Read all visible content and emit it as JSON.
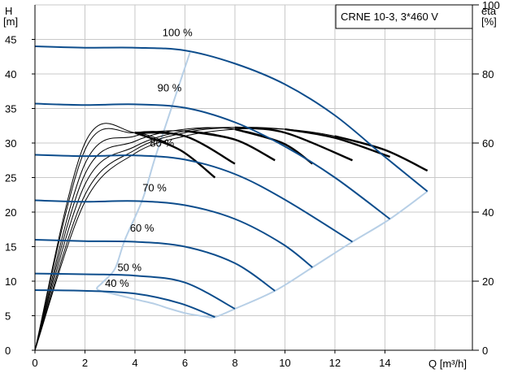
{
  "chart_data": {
    "type": "line",
    "title": "CRNE 10-3, 3*460 V",
    "xlabel": "Q [m³/h]",
    "ylabel_left_top": "H",
    "ylabel_left_bottom": "[m]",
    "ylabel_right_top": "eta",
    "ylabel_right_bottom": "[%]",
    "xlim": [
      0,
      17.5
    ],
    "ylim_head": [
      0,
      50
    ],
    "ylim_eta": [
      0,
      100
    ],
    "x_ticks": [
      0,
      2,
      4,
      6,
      8,
      10,
      12,
      14
    ],
    "x_tick_labels": [
      "0",
      "2",
      "4",
      "6",
      "8",
      "10",
      "12",
      "14"
    ],
    "head_ticks": [
      0,
      5,
      10,
      15,
      20,
      25,
      30,
      35,
      40,
      45
    ],
    "head_tick_labels": [
      "0",
      "5",
      "10",
      "15",
      "20",
      "25",
      "30",
      "35",
      "40",
      "45"
    ],
    "eta_ticks": [
      0,
      20,
      40,
      60,
      80,
      100
    ],
    "eta_tick_labels": [
      "0",
      "20",
      "40",
      "60",
      "80",
      "100"
    ],
    "grid": true,
    "colors": {
      "head_curve": "#0d4d8c",
      "envelope": "#b7cfe6",
      "eta_curve": "#000000",
      "grid": "#c8c8c8",
      "axis": "#000000"
    },
    "head_series": [
      {
        "name": "100 %",
        "label_x": 5.1,
        "label_y": 45.5,
        "x": [
          0,
          2,
          4,
          6,
          8,
          10,
          12,
          14,
          15.7
        ],
        "y": [
          44,
          43.8,
          43.8,
          43.4,
          41.5,
          38.5,
          34,
          28,
          23
        ]
      },
      {
        "name": "90 %",
        "label_x": 4.9,
        "label_y": 37.5,
        "x": [
          0,
          2,
          4,
          6,
          8,
          10,
          12,
          14.2
        ],
        "y": [
          35.7,
          35.5,
          35.6,
          35.1,
          33,
          29.5,
          25,
          19
        ]
      },
      {
        "name": "80 %",
        "label_x": 4.6,
        "label_y": 29.5,
        "x": [
          0,
          2,
          4,
          6,
          8,
          10,
          12.7
        ],
        "y": [
          28.3,
          28.1,
          28.2,
          27.6,
          25.5,
          21.8,
          15.7
        ]
      },
      {
        "name": "70 %",
        "label_x": 4.3,
        "label_y": 23,
        "x": [
          0,
          2,
          4,
          6,
          8,
          9.9,
          11.1
        ],
        "y": [
          21.7,
          21.5,
          21.6,
          21.0,
          19,
          15.4,
          12
        ]
      },
      {
        "name": "60 %",
        "label_x": 3.8,
        "label_y": 17.2,
        "x": [
          0,
          2,
          4,
          6,
          8,
          9.6
        ],
        "y": [
          16,
          15.8,
          15.7,
          15.0,
          12.6,
          8.6
        ]
      },
      {
        "name": "50 %",
        "label_x": 3.3,
        "label_y": 11.5,
        "x": [
          0,
          2,
          4,
          6,
          8
        ],
        "y": [
          11.1,
          11.0,
          10.8,
          9.8,
          6
        ]
      },
      {
        "name": "40 %",
        "label_x": 2.8,
        "label_y": 9.2,
        "x": [
          0,
          2,
          4,
          5.8,
          7.2
        ],
        "y": [
          8.7,
          8.6,
          8.2,
          6.8,
          4.8
        ]
      }
    ],
    "envelope_points": {
      "x": [
        6.2,
        5.5,
        4.8,
        4.3,
        3.6,
        3.2,
        2.7,
        2.5,
        3.2,
        4.1,
        4.8,
        5.4,
        6.1,
        6.8,
        7.2,
        8.0,
        9.6,
        11.1,
        12.7,
        14.2,
        15.7
      ],
      "y": [
        43.1,
        35.5,
        27.8,
        21.8,
        16.0,
        11.8,
        9.8,
        8.8,
        8.1,
        7.3,
        6.7,
        6.0,
        5.3,
        4.9,
        4.8,
        6.0,
        8.6,
        12.0,
        15.7,
        19.0,
        23.0
      ]
    },
    "eta_series": [
      {
        "x": [
          0,
          2,
          4,
          6,
          8,
          10,
          12,
          14,
          15.7
        ],
        "y": [
          0,
          43,
          57,
          62,
          64,
          64,
          62,
          58,
          52
        ]
      },
      {
        "x": [
          0,
          2,
          4,
          6,
          8,
          10,
          12,
          14.2
        ],
        "y": [
          0,
          45,
          58,
          63,
          64.5,
          64,
          61.5,
          56
        ]
      },
      {
        "x": [
          0,
          2,
          4,
          6,
          8,
          10,
          12.7
        ],
        "y": [
          0,
          48,
          59,
          63.5,
          64.5,
          63,
          55
        ]
      },
      {
        "x": [
          0,
          2,
          4,
          6,
          8,
          9.9,
          11.1
        ],
        "y": [
          0,
          51,
          60.5,
          64,
          64,
          60,
          54
        ]
      },
      {
        "x": [
          0,
          2,
          4,
          6,
          8,
          9.6
        ],
        "y": [
          0,
          54,
          62,
          63.5,
          61,
          55
        ]
      },
      {
        "x": [
          0,
          2,
          4,
          6,
          8
        ],
        "y": [
          0,
          58,
          63,
          62,
          54
        ]
      },
      {
        "x": [
          0,
          2,
          4,
          5.8,
          7.2
        ],
        "y": [
          0,
          60,
          63,
          58,
          50
        ]
      }
    ]
  }
}
